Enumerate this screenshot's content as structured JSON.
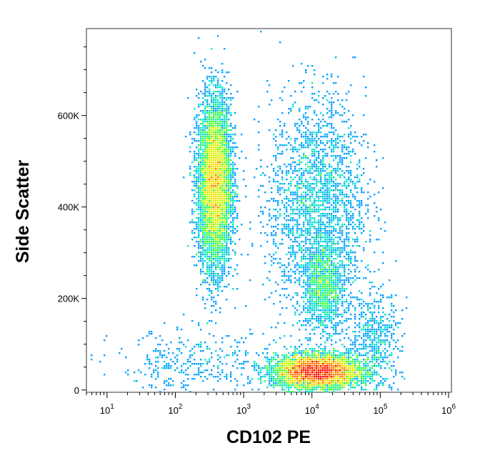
{
  "chart_data": {
    "type": "scatter",
    "subtype": "flow-cytometry-density-dot-plot",
    "xlabel": "CD102 PE",
    "ylabel": "Side Scatter",
    "x_scale": "log",
    "x_range": [
      5,
      1100000
    ],
    "y_range": [
      -5000,
      790000
    ],
    "x_ticks": [
      {
        "base": "10",
        "exp": "1",
        "value": 10
      },
      {
        "base": "10",
        "exp": "2",
        "value": 100
      },
      {
        "base": "10",
        "exp": "3",
        "value": 1000
      },
      {
        "base": "10",
        "exp": "4",
        "value": 10000
      },
      {
        "base": "10",
        "exp": "5",
        "value": 100000
      },
      {
        "base": "10",
        "exp": "6",
        "value": 1000000
      }
    ],
    "y_ticks": [
      {
        "label": "0",
        "value": 0
      },
      {
        "label": "200K",
        "value": 200000
      },
      {
        "label": "400K",
        "value": 400000
      },
      {
        "label": "600K",
        "value": 600000
      }
    ],
    "grid": false,
    "legend": "none",
    "density_colors": [
      "#0000ff",
      "#00a0ff",
      "#00e6c8",
      "#32ff32",
      "#c8ff00",
      "#ffdc00",
      "#ff7800",
      "#ff0000"
    ],
    "populations": [
      {
        "x_center": 380,
        "y_center": 450000,
        "x_spread_decades": 0.12,
        "y_spread": 90000,
        "events": 7000
      },
      {
        "x_center": 12000,
        "y_center": 40000,
        "x_spread_decades": 0.3,
        "y_spread": 18000,
        "events": 9000
      },
      {
        "x_center": 12000,
        "y_center": 400000,
        "x_spread_decades": 0.35,
        "y_spread": 120000,
        "events": 2500
      },
      {
        "x_center": 15000,
        "y_center": 220000,
        "x_spread_decades": 0.15,
        "y_spread": 45000,
        "events": 1200
      },
      {
        "x_center": 80000,
        "y_center": 100000,
        "x_spread_decades": 0.2,
        "y_spread": 60000,
        "events": 600
      },
      {
        "x_center": 200,
        "y_center": 50000,
        "x_spread_decades": 0.6,
        "y_spread": 40000,
        "events": 400
      }
    ]
  }
}
